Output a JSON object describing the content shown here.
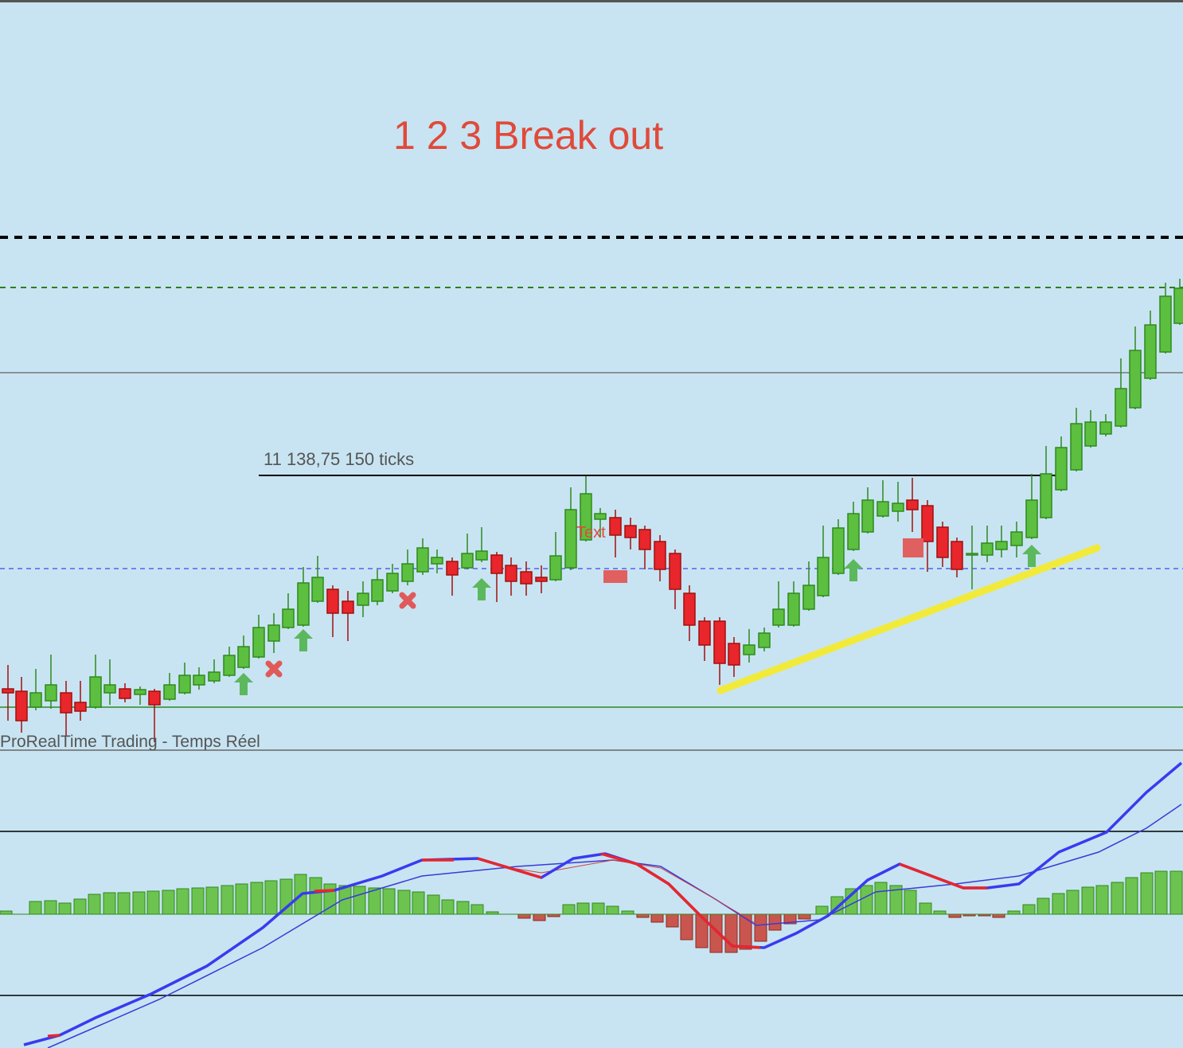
{
  "title": "1 2 3 Break out",
  "level_label": "11 138,75 150 ticks",
  "source_label": "ProRealTime Trading - Temps Réel",
  "marker_text": "Text"
}
